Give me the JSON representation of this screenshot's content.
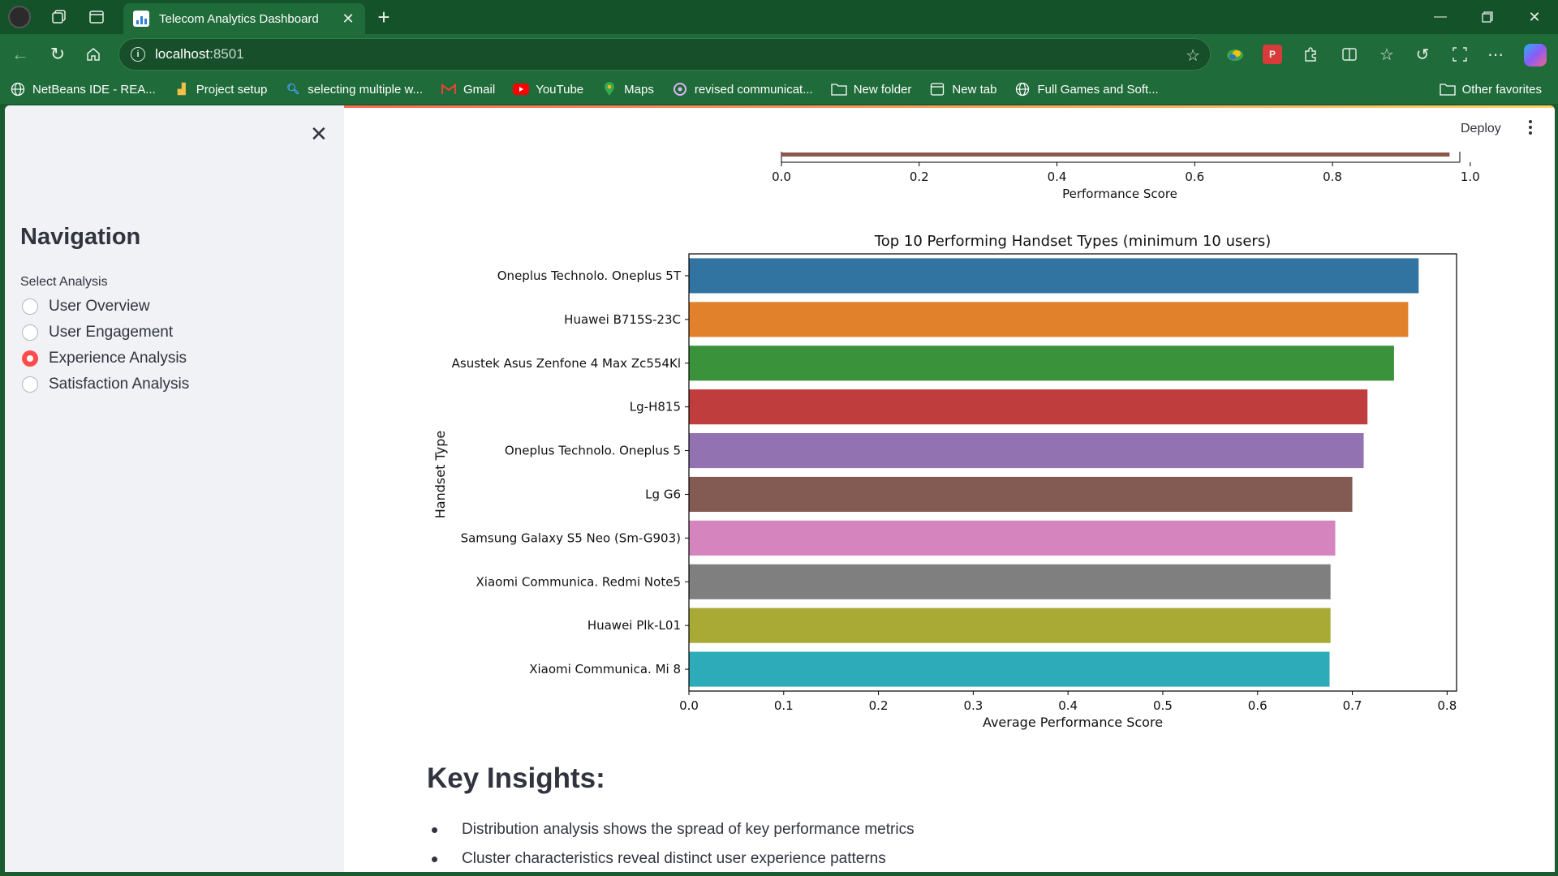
{
  "browser": {
    "tab_title": "Telecom Analytics Dashboard",
    "url_host": "localhost",
    "url_port": ":8501",
    "bookmarks": [
      {
        "label": "NetBeans IDE - REA...",
        "icon": "globe-icon"
      },
      {
        "label": "Project setup",
        "icon": "project-icon"
      },
      {
        "label": "selecting multiple w...",
        "icon": "search-icon"
      },
      {
        "label": "Gmail",
        "icon": "gmail-icon"
      },
      {
        "label": "YouTube",
        "icon": "youtube-icon"
      },
      {
        "label": "Maps",
        "icon": "maps-icon"
      },
      {
        "label": "revised communicat...",
        "icon": "ai-icon"
      },
      {
        "label": "New folder",
        "icon": "folder-icon"
      },
      {
        "label": "New tab",
        "icon": "newtab-icon"
      },
      {
        "label": "Full Games and Soft...",
        "icon": "globe-icon"
      }
    ],
    "other_favorites": "Other favorites"
  },
  "sidebar": {
    "title": "Navigation",
    "select_label": "Select Analysis",
    "options": [
      "User Overview",
      "User Engagement",
      "Experience Analysis",
      "Satisfaction Analysis"
    ],
    "selected": "Experience Analysis"
  },
  "header": {
    "deploy_label": "Deploy"
  },
  "top_chart": {
    "xlabel": "Performance Score",
    "ticks": [
      "0.0",
      "0.2",
      "0.4",
      "0.6",
      "0.8",
      "1.0"
    ],
    "bar_end": 0.97,
    "bar_color": "#8c564b"
  },
  "chart_data": {
    "type": "bar",
    "orientation": "horizontal",
    "title": "Top 10 Performing Handset Types (minimum 10 users)",
    "xlabel": "Average Performance Score",
    "ylabel": "Handset Type",
    "xlim": [
      0.0,
      0.81
    ],
    "xticks": [
      "0.0",
      "0.1",
      "0.2",
      "0.3",
      "0.4",
      "0.5",
      "0.6",
      "0.7",
      "0.8"
    ],
    "categories": [
      "Oneplus Technolo. Oneplus 5T",
      "Huawei B715S-23C",
      "Asustek Asus Zenfone 4 Max Zc554Kl",
      "Lg-H815",
      "Oneplus Technolo. Oneplus 5",
      "Lg G6",
      "Samsung Galaxy S5 Neo (Sm-G903)",
      "Xiaomi Communica. Redmi Note5",
      "Huawei Plk-L01",
      "Xiaomi Communica. Mi 8"
    ],
    "values": [
      0.77,
      0.759,
      0.744,
      0.716,
      0.712,
      0.7,
      0.682,
      0.677,
      0.677,
      0.676
    ],
    "colors": [
      "#3274a1",
      "#e1812c",
      "#3a923a",
      "#c03d3e",
      "#9372b2",
      "#845b53",
      "#d684bd",
      "#7f7f7f",
      "#a9aa35",
      "#2eabb8"
    ]
  },
  "insights": {
    "title": "Key Insights:",
    "items": [
      "Distribution analysis shows the spread of key performance metrics",
      "Cluster characteristics reveal distinct user experience patterns"
    ]
  }
}
